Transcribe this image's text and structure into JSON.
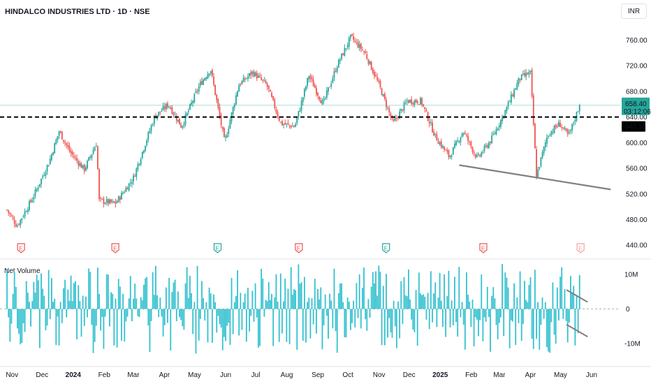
{
  "header": {
    "symbol_title": "HINDALCO INDUSTRIES LTD · 1D · NSE",
    "currency": "INR"
  },
  "volume_panel": {
    "title": "Net Volume"
  },
  "price_badges": {
    "last_price": "658.40",
    "countdown": "03:12:06",
    "level_price": "640.10"
  },
  "earnings_marker": "E",
  "colors": {
    "up": "#26a69a",
    "down": "#ef5350",
    "volume": "#33c1cf",
    "trendline": "#808080",
    "last_price_badge": "#26a69a",
    "level_badge": "#000000",
    "earnings_future": "#f4a0a0"
  },
  "chart_data": [
    {
      "type": "candlestick",
      "title": "HINDALCO INDUSTRIES LTD · 1D · NSE",
      "x_ticks": [
        "Nov",
        "Dec",
        "2024",
        "Feb",
        "Mar",
        "Apr",
        "May",
        "Jun",
        "Jul",
        "Aug",
        "Sep",
        "Oct",
        "Nov",
        "Dec",
        "2025",
        "Feb",
        "Mar",
        "Apr",
        "May",
        "Jun"
      ],
      "y_ticks": [
        "760.00",
        "720.00",
        "680.00",
        "640.00",
        "600.00",
        "560.00",
        "520.00",
        "480.00",
        "440.00"
      ],
      "ylim": [
        425,
        790
      ],
      "horizontal_level": 640.1,
      "last_price": 658.4,
      "price_path": [
        [
          "2023-10-27",
          495
        ],
        [
          "2023-11-06",
          470
        ],
        [
          "2023-11-22",
          515
        ],
        [
          "2023-12-08",
          570
        ],
        [
          "2023-12-18",
          618
        ],
        [
          "2023-12-29",
          585
        ],
        [
          "2024-01-12",
          558
        ],
        [
          "2024-01-25",
          602
        ],
        [
          "2024-01-26",
          510
        ],
        [
          "2024-02-12",
          505
        ],
        [
          "2024-03-01",
          545
        ],
        [
          "2024-03-22",
          640
        ],
        [
          "2024-04-05",
          660
        ],
        [
          "2024-04-18",
          625
        ],
        [
          "2024-05-06",
          690
        ],
        [
          "2024-05-17",
          715
        ],
        [
          "2024-05-31",
          600
        ],
        [
          "2024-06-14",
          690
        ],
        [
          "2024-06-28",
          710
        ],
        [
          "2024-07-12",
          690
        ],
        [
          "2024-07-26",
          630
        ],
        [
          "2024-08-09",
          625
        ],
        [
          "2024-08-23",
          705
        ],
        [
          "2024-09-06",
          660
        ],
        [
          "2024-09-20",
          720
        ],
        [
          "2024-10-04",
          765
        ],
        [
          "2024-10-18",
          740
        ],
        [
          "2024-11-01",
          690
        ],
        [
          "2024-11-15",
          630
        ],
        [
          "2024-11-29",
          665
        ],
        [
          "2024-12-13",
          665
        ],
        [
          "2024-12-27",
          610
        ],
        [
          "2025-01-10",
          578
        ],
        [
          "2025-01-24",
          618
        ],
        [
          "2025-02-07",
          575
        ],
        [
          "2025-02-21",
          605
        ],
        [
          "2025-03-07",
          650
        ],
        [
          "2025-03-21",
          700
        ],
        [
          "2025-04-01",
          710
        ],
        [
          "2025-04-07",
          548
        ],
        [
          "2025-04-18",
          612
        ],
        [
          "2025-04-30",
          630
        ],
        [
          "2025-05-09",
          610
        ],
        [
          "2025-05-20",
          658.4
        ]
      ],
      "trendline": [
        [
          "2025-01-20",
          565
        ],
        [
          "2025-06-20",
          527
        ]
      ]
    },
    {
      "type": "bar",
      "title": "Net Volume",
      "y_ticks": [
        "10M",
        "0",
        "-10M"
      ],
      "ylim": [
        -16000000,
        14000000
      ],
      "wedge_lines": [
        {
          "from": [
            "2025-05-07",
            5500000
          ],
          "to": [
            "2025-05-28",
            2000000
          ]
        },
        {
          "from": [
            "2025-05-07",
            -4500000
          ],
          "to": [
            "2025-05-28",
            -8000000
          ]
        }
      ]
    }
  ],
  "earnings_events": [
    "2023-11-10",
    "2024-02-12",
    "2024-05-24",
    "2024-08-13",
    "2024-11-08",
    "2025-02-13",
    "2025-05-21"
  ]
}
